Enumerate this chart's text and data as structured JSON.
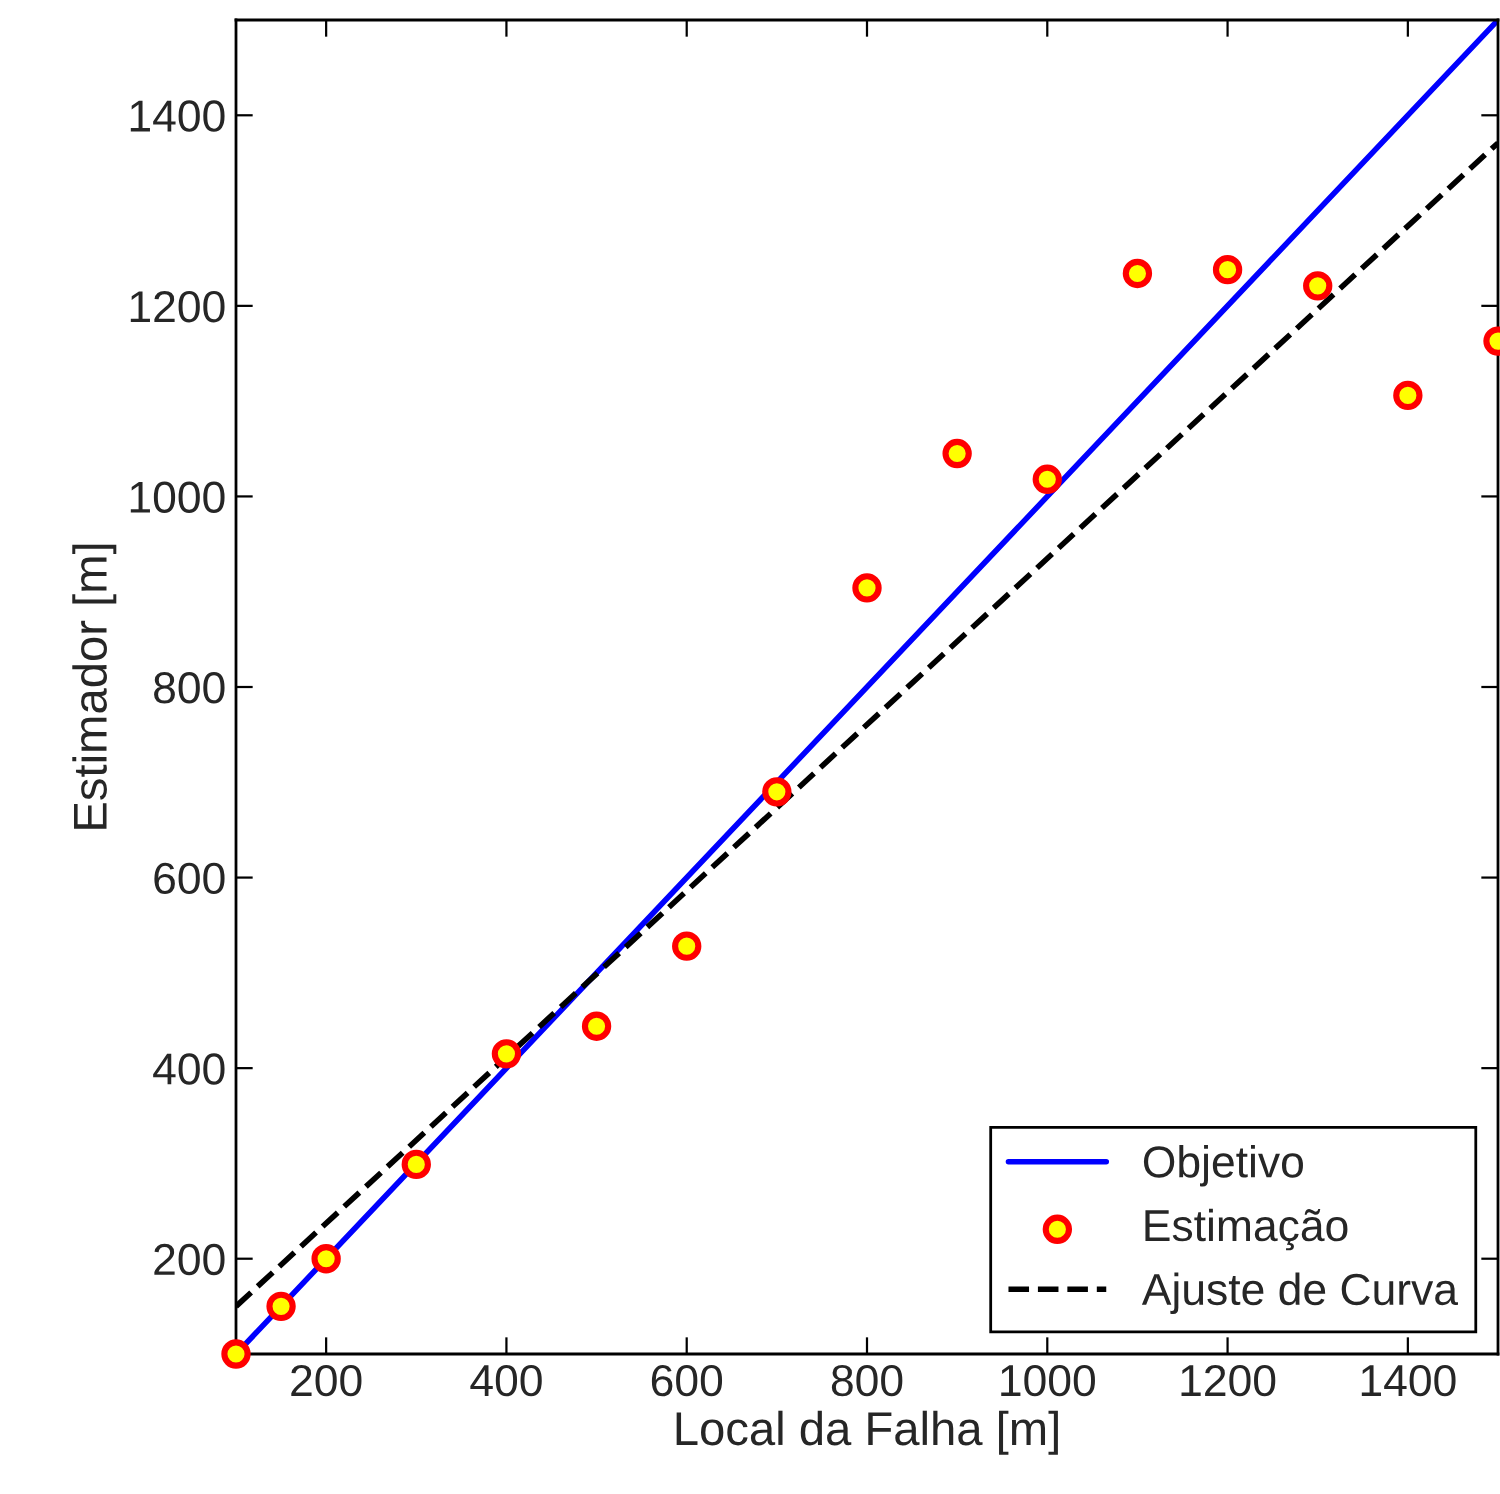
{
  "chart_data": {
    "type": "scatter",
    "xlabel": "Local da Falha [m]",
    "ylabel": "Estimador [m]",
    "xlim": [
      100,
      1500
    ],
    "ylim": [
      100,
      1500
    ],
    "xticks": [
      200,
      400,
      600,
      800,
      1000,
      1200,
      1400
    ],
    "yticks": [
      200,
      400,
      600,
      800,
      1000,
      1200,
      1400
    ],
    "grid": false,
    "legend": "bottom right",
    "series": [
      {
        "name": "Objetivo",
        "type": "line",
        "color": "#0000ff",
        "line_style": "solid",
        "marker": "none",
        "x": [
          100,
          1500
        ],
        "values": [
          100,
          1500
        ]
      },
      {
        "name": "Estimação",
        "color": "#ffff00",
        "marker": "circle",
        "x": [
          100,
          150,
          200,
          300,
          400,
          500,
          600,
          700,
          800,
          900,
          1000,
          1100,
          1200,
          1300,
          1400,
          1500
        ],
        "values": [
          100,
          150,
          200,
          299,
          415,
          444,
          528,
          690,
          904,
          1045,
          1018,
          1234,
          1238,
          1221,
          1106,
          1163
        ]
      },
      {
        "name": "Ajuste de Curva",
        "type": "line",
        "color": "#000000",
        "line_style": "dashed",
        "marker": "none",
        "x": [
          100,
          1500
        ],
        "values": [
          150,
          1371
        ]
      }
    ]
  }
}
